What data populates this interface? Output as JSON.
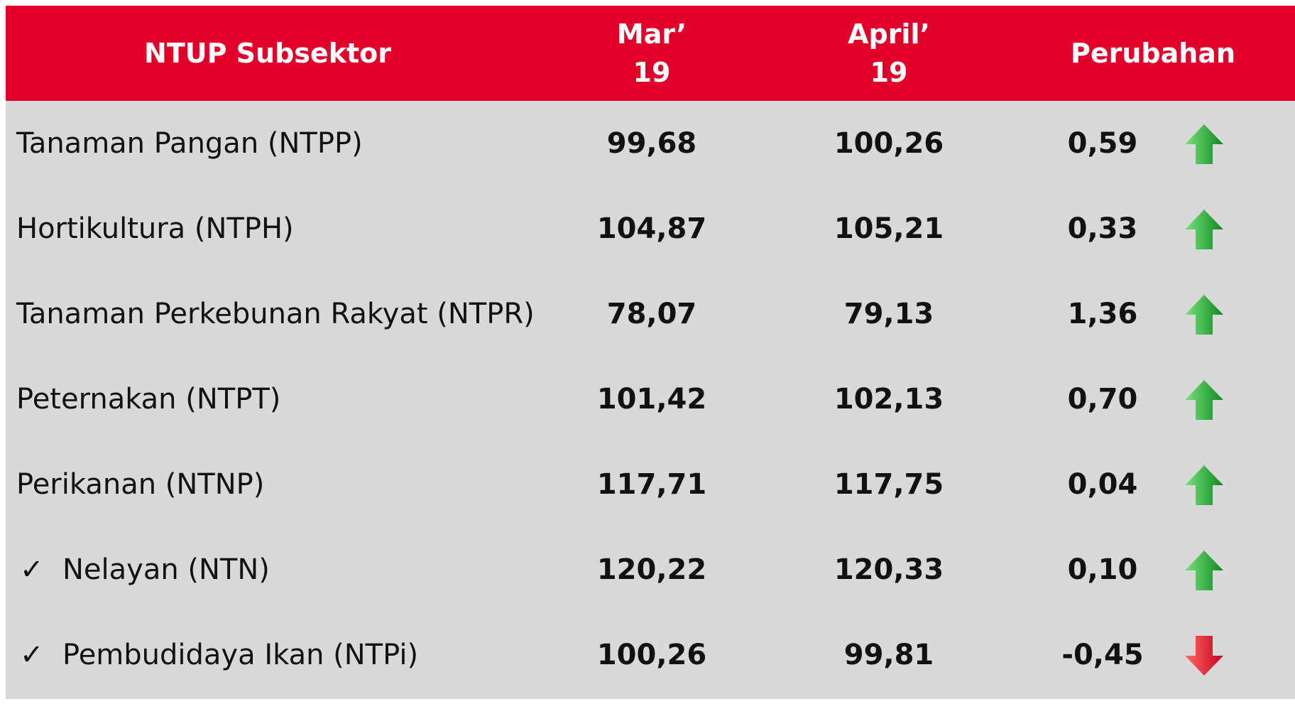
{
  "header": [
    "NTUP Subsektor",
    "Mar’ 19",
    "April’ 19",
    "Perubahan"
  ],
  "rows": [
    {
      "label": "Tanaman Pangan (NTPP)",
      "cells": [
        "99,68",
        "100,26",
        "0,59"
      ]
    },
    {
      "label": "Hortikultura (NTPH)",
      "cells": [
        "104,87",
        "105,21",
        "0,33"
      ]
    },
    {
      "label": "Tanaman Perkebunan Rakyat (NTPR)",
      "cells": [
        "78,07",
        "79,13",
        "1,36"
      ]
    },
    {
      "label": "Peternakan (NTPT)",
      "cells": [
        "101,42",
        "102,13",
        "0,70"
      ]
    },
    {
      "label": "Perikanan (NTNP)",
      "cells": [
        "117,71",
        "117,75",
        "0,04"
      ]
    },
    {
      "bullet": "✓",
      "label": "Nelayan (NTN)",
      "cells": [
        "120,22",
        "120,33",
        "0,10"
      ]
    },
    {
      "bullet": "✓",
      "label": "Pembudidaya Ikan (NTPi)",
      "cells": [
        "100,26",
        "99,81",
        "-0,45"
      ]
    }
  ]
}
